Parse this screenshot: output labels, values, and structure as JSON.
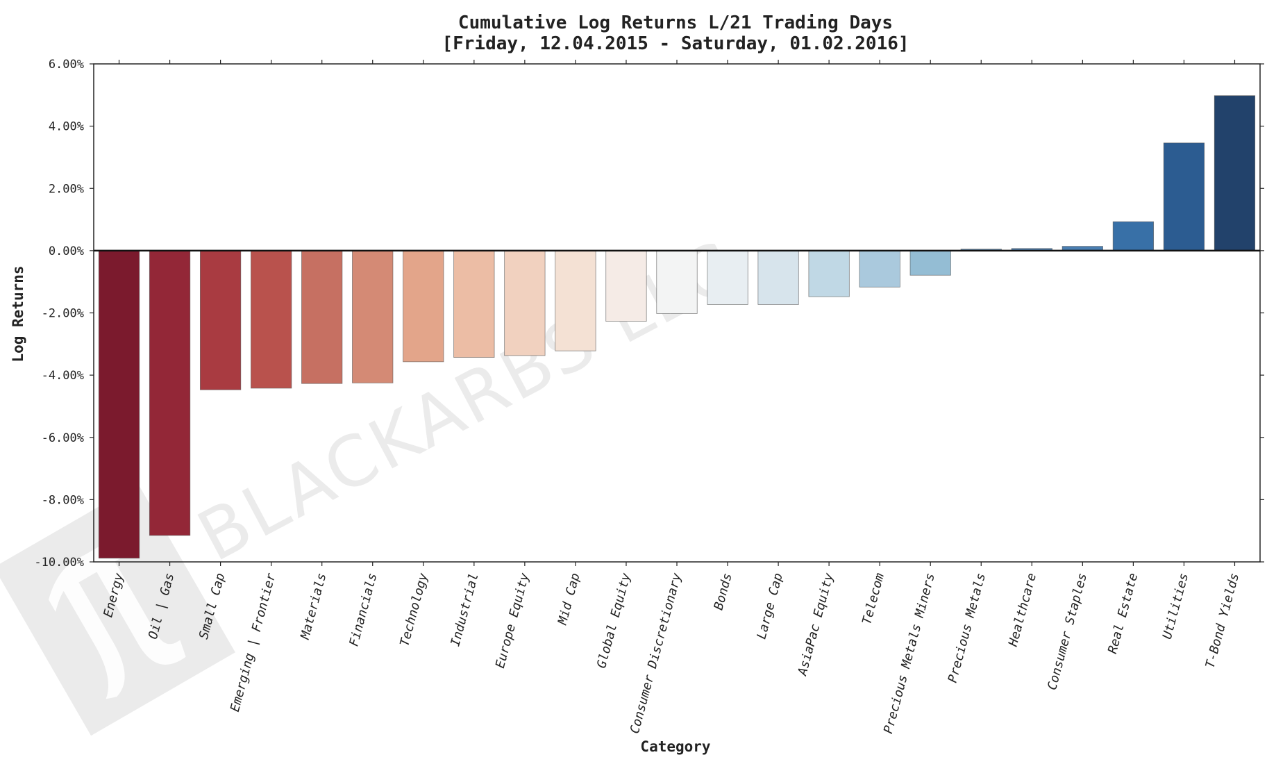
{
  "chart_data": {
    "type": "bar",
    "title": "Cumulative Log Returns L/21 Trading Days",
    "subtitle": "[Friday, 12.04.2015 - Saturday, 01.02.2016]",
    "xlabel": "Category",
    "ylabel": "Log Returns",
    "ylim": [
      -10,
      6
    ],
    "yticks": [
      "6.00%",
      "4.00%",
      "2.00%",
      "0.00%",
      "-2.00%",
      "-4.00%",
      "-6.00%",
      "-8.00%",
      "-10.00%"
    ],
    "ytick_values": [
      6,
      4,
      2,
      0,
      -2,
      -4,
      -6,
      -8,
      -10
    ],
    "grid": false,
    "categories": [
      "Energy",
      "Oil | Gas",
      "Small Cap",
      "Emerging | Frontier",
      "Materials",
      "Financials",
      "Technology",
      "Industrial",
      "Europe Equity",
      "Mid Cap",
      "Global Equity",
      "Consumer Discretionary",
      "Bonds",
      "Large Cap",
      "AsiaPac Equity",
      "Telecom",
      "Precious Metals Miners",
      "Precious Metals",
      "Healthcare",
      "Consumer Staples",
      "Real Estate",
      "Utilities",
      "T-Bond Yields"
    ],
    "values": [
      -9.88,
      -9.15,
      -4.47,
      -4.42,
      -4.27,
      -4.25,
      -3.57,
      -3.43,
      -3.37,
      -3.22,
      -2.27,
      -2.02,
      -1.73,
      -1.73,
      -1.48,
      -1.17,
      -0.79,
      0.05,
      0.07,
      0.14,
      0.93,
      3.46,
      4.98
    ],
    "colors": [
      "#7b1a2d",
      "#932737",
      "#a93b41",
      "#b9524d",
      "#c67062",
      "#d48a75",
      "#e3a58a",
      "#ecbda5",
      "#f1d1bf",
      "#f4e1d4",
      "#f5ebe6",
      "#f3f4f4",
      "#e8eef2",
      "#d7e4ec",
      "#c0d8e5",
      "#aac9dd",
      "#94bdd4",
      "#6393bd",
      "#5588ba",
      "#4a7fb2",
      "#3870a7",
      "#2c5c91",
      "#22426b"
    ]
  },
  "watermark": {
    "text": "BLACKARBS LLC",
    "symbol": "π"
  }
}
